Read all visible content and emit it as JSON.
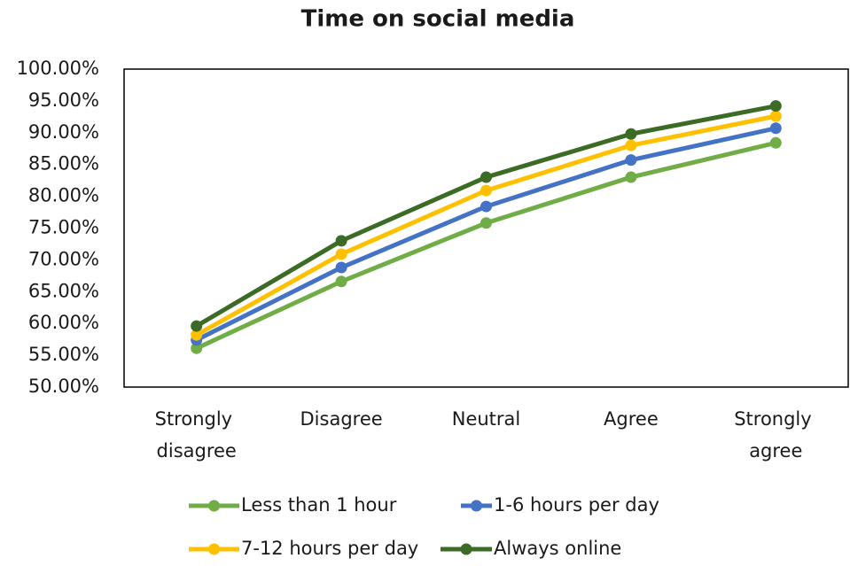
{
  "chart_data": {
    "type": "line",
    "title": "Time on social media",
    "categories": [
      "Strongly disagree",
      "Disagree",
      "Neutral",
      "Agree",
      "Strongly agree"
    ],
    "series": [
      {
        "name": "Less than 1 hour",
        "color": "#70ad47",
        "values": [
          56.1,
          66.6,
          75.8,
          83.0,
          88.4
        ]
      },
      {
        "name": "1-6 hours per day",
        "color": "#4472c4",
        "values": [
          57.4,
          68.8,
          78.4,
          85.7,
          90.7
        ]
      },
      {
        "name": "7-12 hours per day",
        "color": "#ffc000",
        "values": [
          58.2,
          70.9,
          80.9,
          88.0,
          92.6
        ]
      },
      {
        "name": "Always online",
        "color": "#3b6b24",
        "values": [
          59.6,
          73.0,
          83.0,
          89.8,
          94.2
        ]
      }
    ],
    "ylim": [
      50,
      100
    ],
    "yticks": [
      {
        "value": 50,
        "label": "50.00%"
      },
      {
        "value": 55,
        "label": "55.00%"
      },
      {
        "value": 60,
        "label": "60.00%"
      },
      {
        "value": 65,
        "label": "65.00%"
      },
      {
        "value": 70,
        "label": "70.00%"
      },
      {
        "value": 75,
        "label": "75.00%"
      },
      {
        "value": 80,
        "label": "80.00%"
      },
      {
        "value": 85,
        "label": "85.00%"
      },
      {
        "value": 90,
        "label": "90.00%"
      },
      {
        "value": 95,
        "label": "95.00%"
      },
      {
        "value": 100,
        "label": "100.00%"
      }
    ],
    "grid": false,
    "legend": "bottom"
  }
}
